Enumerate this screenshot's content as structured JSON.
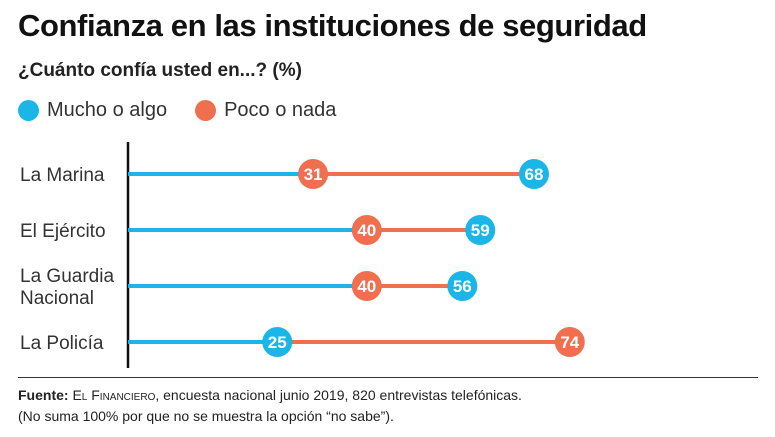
{
  "header": {
    "title": "Confianza en las instituciones de seguridad",
    "subtitle": "¿Cuánto confía usted en...? (%)"
  },
  "legend": [
    {
      "label": "Mucho o algo",
      "color": "#1ab6e8"
    },
    {
      "label": "Poco o nada",
      "color": "#f06f4f"
    }
  ],
  "chart_data": {
    "type": "dot",
    "categories": [
      "La Marina",
      "El Ejército",
      "La Guardia Nacional",
      "La Policía"
    ],
    "series": [
      {
        "name": "Mucho o algo",
        "color": "#1ab6e8",
        "values": [
          68,
          59,
          56,
          25
        ]
      },
      {
        "name": "Poco o nada",
        "color": "#f06f4f",
        "values": [
          31,
          40,
          40,
          74
        ]
      }
    ],
    "xlim": [
      0,
      100
    ]
  },
  "footer": {
    "source_label": "Fuente:",
    "source_org": "El Financiero",
    "source_rest": ", encuesta nacional junio 2019, 820 entrevistas telefónicas.",
    "note": "(No suma 100% por que no se muestra la opción “no sabe”)."
  }
}
